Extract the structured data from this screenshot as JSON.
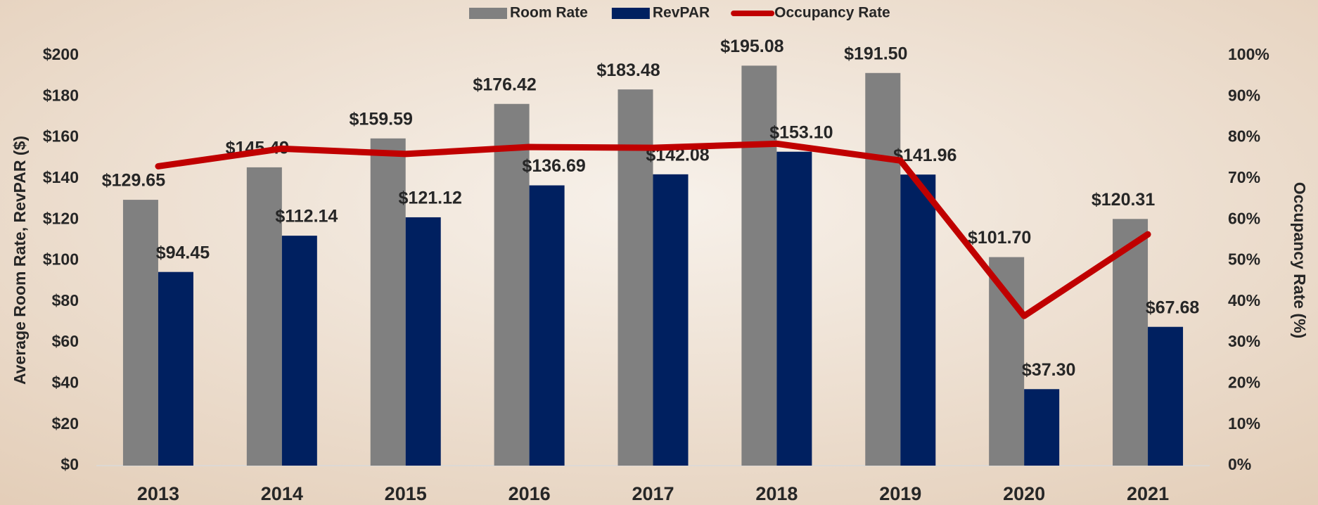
{
  "chart_data": {
    "type": "bar",
    "categories": [
      "2013",
      "2014",
      "2015",
      "2016",
      "2017",
      "2018",
      "2019",
      "2020",
      "2021"
    ],
    "series": [
      {
        "name": "Room Rate",
        "color": "#808080",
        "values": [
          129.65,
          145.49,
          159.59,
          176.42,
          183.48,
          195.08,
          191.5,
          101.7,
          120.31
        ],
        "value_labels": [
          "$129.65",
          "$145.49",
          "$159.59",
          "$176.42",
          "$183.48",
          "$195.08",
          "$191.50",
          "$101.70",
          "$120.31"
        ]
      },
      {
        "name": "RevPAR",
        "color": "#002060",
        "values": [
          94.45,
          112.14,
          121.12,
          136.69,
          142.08,
          153.1,
          141.96,
          37.3,
          67.68
        ],
        "value_labels": [
          "$94.45",
          "$112.14",
          "$121.12",
          "$136.69",
          "$142.08",
          "$153.10",
          "$141.96",
          "$37.30",
          "$67.68"
        ]
      },
      {
        "name": "Occupancy Rate",
        "color": "#c00000",
        "type": "line",
        "axis": "y2",
        "values": [
          73,
          77.3,
          76,
          77.7,
          77.5,
          78.5,
          74.4,
          36.5,
          56.4
        ]
      }
    ],
    "ylabel": "Average Room Rate, RevPAR ($)",
    "y2label": "Occupancy Rate (%)",
    "ylim": [
      0,
      200
    ],
    "yticks": [
      {
        "value": 0,
        "label": "$0"
      },
      {
        "value": 20,
        "label": "$20"
      },
      {
        "value": 40,
        "label": "$40"
      },
      {
        "value": 60,
        "label": "$60"
      },
      {
        "value": 80,
        "label": "$80"
      },
      {
        "value": 100,
        "label": "$100"
      },
      {
        "value": 120,
        "label": "$120"
      },
      {
        "value": 140,
        "label": "$140"
      },
      {
        "value": 160,
        "label": "$160"
      },
      {
        "value": 180,
        "label": "$180"
      },
      {
        "value": 200,
        "label": "$200"
      }
    ],
    "y2lim": [
      0,
      100
    ],
    "y2ticks": [
      {
        "value": 0,
        "label": "0%"
      },
      {
        "value": 10,
        "label": "10%"
      },
      {
        "value": 20,
        "label": "20%"
      },
      {
        "value": 30,
        "label": "30%"
      },
      {
        "value": 40,
        "label": "40%"
      },
      {
        "value": 50,
        "label": "50%"
      },
      {
        "value": 60,
        "label": "60%"
      },
      {
        "value": 70,
        "label": "70%"
      },
      {
        "value": 80,
        "label": "80%"
      },
      {
        "value": 90,
        "label": "90%"
      },
      {
        "value": 100,
        "label": "100%"
      }
    ],
    "legend": "top"
  }
}
